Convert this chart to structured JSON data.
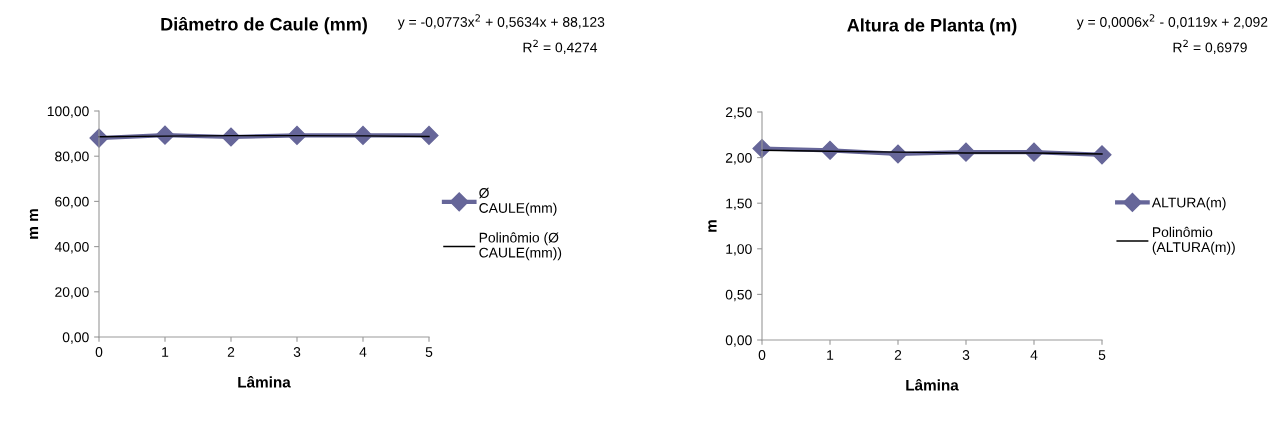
{
  "chart_data": [
    {
      "type": "line",
      "title": "Diâmetro de Caule (mm)",
      "xlabel": "Lâmina",
      "ylabel": "m m",
      "categories": [
        "0",
        "1",
        "2",
        "3",
        "4",
        "5"
      ],
      "series": [
        {
          "name": "Ø\nCAULE(mm)",
          "color": "#666699",
          "marker": "diamond",
          "values": [
            88.0,
            89.3,
            88.5,
            89.2,
            89.2,
            89.2
          ]
        },
        {
          "name": "Polinômio (Ø\nCAULE(mm))",
          "color": "#000000",
          "marker": "none",
          "values": [
            88.6,
            88.9,
            89.1,
            89.1,
            89.0,
            88.7
          ]
        }
      ],
      "ylim": [
        0,
        100
      ],
      "yticks": [
        {
          "value": 0,
          "label": "0,00"
        },
        {
          "value": 20,
          "label": "20,00"
        },
        {
          "value": 40,
          "label": "40,00"
        },
        {
          "value": 60,
          "label": "60,00"
        },
        {
          "value": 80,
          "label": "80,00"
        },
        {
          "value": 100,
          "label": "100,00"
        }
      ],
      "annotations": [
        "y = -0,0773x$^{2}$ + 0,5634x + 88,123",
        "R$^{2}$ = 0,4274"
      ],
      "legend": "right",
      "grid": false
    },
    {
      "type": "line",
      "title": "Altura de Planta (m)",
      "xlabel": "Lâmina",
      "ylabel": "m",
      "categories": [
        "0",
        "1",
        "2",
        "3",
        "4",
        "5"
      ],
      "series": [
        {
          "name": "ALTURA(m)",
          "color": "#666699",
          "marker": "diamond",
          "values": [
            2.1,
            2.08,
            2.04,
            2.06,
            2.06,
            2.03
          ]
        },
        {
          "name": "Polinômio\n(ALTURA(m))",
          "color": "#000000",
          "marker": "none",
          "values": [
            2.08,
            2.07,
            2.06,
            2.05,
            2.05,
            2.04
          ]
        }
      ],
      "ylim": [
        0,
        2.5
      ],
      "yticks": [
        {
          "value": 0,
          "label": "0,00"
        },
        {
          "value": 0.5,
          "label": "0,50"
        },
        {
          "value": 1.0,
          "label": "1,00"
        },
        {
          "value": 1.5,
          "label": "1,50"
        },
        {
          "value": 2.0,
          "label": "2,00"
        },
        {
          "value": 2.5,
          "label": "2,50"
        }
      ],
      "annotations": [
        "y = 0,0006x$^{2}$ - 0,0119x + 2,092",
        "R$^{2}$ = 0,6979"
      ],
      "legend": "right",
      "grid": false
    }
  ]
}
